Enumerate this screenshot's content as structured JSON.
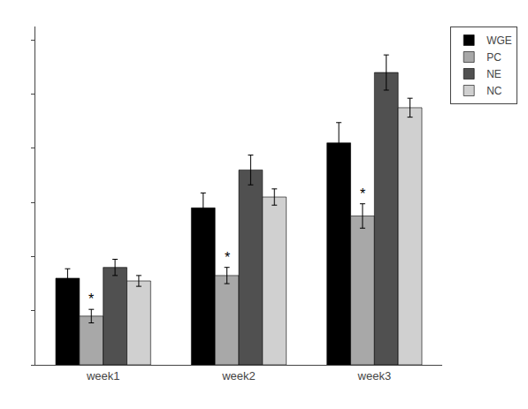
{
  "chart_data": {
    "type": "bar",
    "categories": [
      "week1",
      "week2",
      "week3"
    ],
    "series": [
      {
        "name": "WGE",
        "color": "#000000",
        "values": [
          3.2,
          5.8,
          8.2
        ],
        "errors": [
          0.35,
          0.55,
          0.75
        ]
      },
      {
        "name": "PC",
        "color": "#a8a8a8",
        "values": [
          1.8,
          3.3,
          5.5
        ],
        "errors": [
          0.25,
          0.3,
          0.45
        ]
      },
      {
        "name": "NE",
        "color": "#505050",
        "values": [
          3.6,
          7.2,
          10.8
        ],
        "errors": [
          0.3,
          0.55,
          0.65
        ]
      },
      {
        "name": "NC",
        "color": "#d0d0d0",
        "values": [
          3.1,
          6.2,
          9.5
        ],
        "errors": [
          0.2,
          0.3,
          0.35
        ]
      }
    ],
    "ylim": [
      0,
      12.5
    ],
    "yticks": [
      0,
      2,
      4,
      6,
      8,
      10,
      12
    ],
    "tick_labels": "x",
    "grid": false,
    "legend": "upper right",
    "annotations": [
      {
        "text": "*",
        "series": "PC",
        "category": "week1"
      },
      {
        "text": "*",
        "series": "PC",
        "category": "week2"
      },
      {
        "text": "*",
        "series": "PC",
        "category": "week3"
      }
    ]
  }
}
